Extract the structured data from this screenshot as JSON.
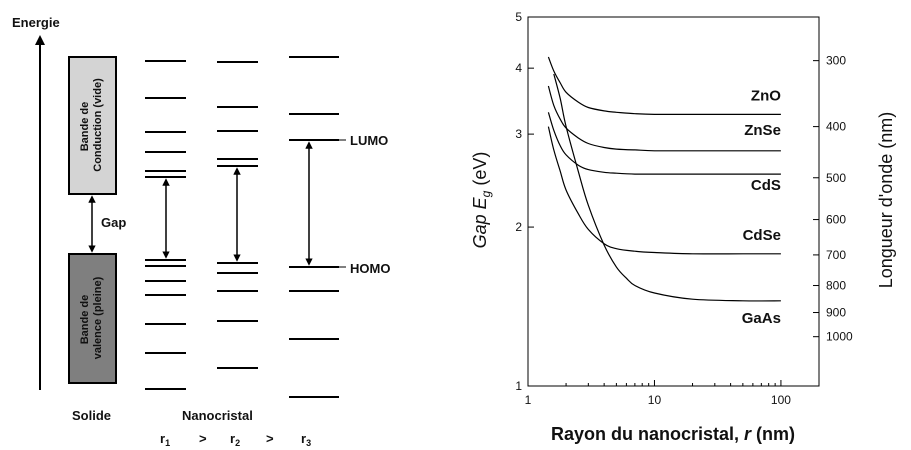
{
  "left_diagram": {
    "energy_axis_label": "Energie",
    "conduction_band_label": [
      "Bande de",
      "Conduction (vide)"
    ],
    "valence_band_label": [
      "Bande de",
      "valence (pleine)"
    ],
    "gap_label": "Gap",
    "lumo_label": "LUMO",
    "homo_label": "HOMO",
    "solid_label": "Solide",
    "nanocrystal_label": "Nanocristal",
    "radius_ordering": {
      "r1_base": "r",
      "r1_sub": "1",
      "gt1": ">",
      "r2_base": "r",
      "r2_sub": "2",
      "gt2": ">",
      "r3_base": "r",
      "r3_sub": "3"
    },
    "colors": {
      "conduction_band": "#d4d4d4",
      "valence_band": "#7f7f7f"
    }
  },
  "chart_data": {
    "type": "line",
    "xscale": "log",
    "yscale": "log",
    "xlabel": "Rayon du nanocristal, r (nm)",
    "xlabel_parts": {
      "main": "Rayon du nanocristal, ",
      "var": "r",
      "unit": " (nm)"
    },
    "ylabel": "Gap Eg (eV)",
    "ylabel_parts": {
      "main": "Gap ",
      "var": "E",
      "sub": "g",
      "unit": " (eV)"
    },
    "y2label": "Longueur d'onde (nm)",
    "xlim": [
      1,
      200
    ],
    "ylim": [
      1,
      5
    ],
    "x_ticks": [
      1,
      10,
      100
    ],
    "x_tick_labels": [
      "1",
      "10",
      "100"
    ],
    "y_ticks": [
      1,
      2,
      3,
      4,
      5
    ],
    "y_tick_labels": [
      "1",
      "2",
      "3",
      "4",
      "5"
    ],
    "y2_ticks": [
      300,
      400,
      500,
      600,
      700,
      800,
      900,
      1000
    ],
    "y2_tick_labels": [
      "300",
      "400",
      "500",
      "600",
      "700",
      "800",
      "900",
      "1000"
    ],
    "grid": false,
    "series": [
      {
        "name": "ZnO",
        "x": [
          1.45,
          1.6,
          1.8,
          2.0,
          2.5,
          3,
          4,
          5,
          7,
          10,
          20,
          50,
          100
        ],
        "y": [
          4.2,
          3.95,
          3.75,
          3.6,
          3.45,
          3.37,
          3.32,
          3.3,
          3.28,
          3.27,
          3.27,
          3.27,
          3.27
        ]
      },
      {
        "name": "ZnSe",
        "x": [
          1.45,
          1.6,
          1.8,
          2.0,
          2.5,
          3,
          4,
          5,
          7,
          10,
          20,
          50,
          100
        ],
        "y": [
          3.7,
          3.4,
          3.2,
          3.08,
          2.95,
          2.88,
          2.83,
          2.81,
          2.8,
          2.79,
          2.79,
          2.79,
          2.79
        ]
      },
      {
        "name": "CdS",
        "x": [
          1.45,
          1.6,
          1.8,
          2.0,
          2.5,
          3,
          4,
          5,
          7,
          10,
          20,
          50,
          100
        ],
        "y": [
          3.3,
          3.05,
          2.85,
          2.74,
          2.62,
          2.57,
          2.54,
          2.53,
          2.52,
          2.52,
          2.52,
          2.52,
          2.52
        ]
      },
      {
        "name": "CdSe",
        "x": [
          1.45,
          1.6,
          1.8,
          2.0,
          2.5,
          3,
          4,
          5,
          7,
          10,
          20,
          50,
          100
        ],
        "y": [
          3.1,
          2.8,
          2.55,
          2.35,
          2.12,
          1.98,
          1.86,
          1.82,
          1.8,
          1.79,
          1.78,
          1.78,
          1.78
        ]
      },
      {
        "name": "GaAs",
        "x": [
          1.6,
          1.8,
          2.0,
          2.5,
          3,
          4,
          5,
          6,
          7,
          10,
          20,
          50,
          100
        ],
        "y": [
          3.9,
          3.5,
          3.1,
          2.55,
          2.2,
          1.85,
          1.68,
          1.6,
          1.55,
          1.5,
          1.46,
          1.45,
          1.45
        ]
      }
    ]
  }
}
